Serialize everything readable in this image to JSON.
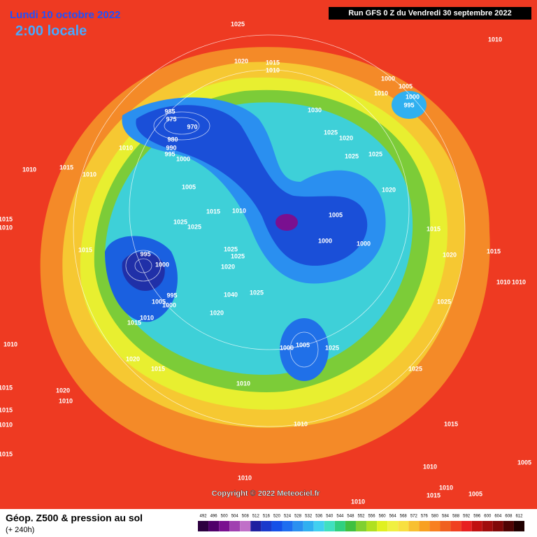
{
  "header": {
    "date": "Lundi 10 octobre 2022",
    "time": "2:00 locale",
    "run": "Run GFS 0 Z du Vendredi 30 septembre 2022"
  },
  "map": {
    "copyright": "Copyright © 2022 Meteociel.fr",
    "isobar_labels": [
      1025,
      1020,
      1015,
      1010,
      1010,
      1000,
      1005,
      1010,
      1000,
      995,
      985,
      975,
      970,
      1030,
      1025,
      1020,
      980,
      990,
      995,
      1000,
      1010,
      1010,
      1015,
      1010,
      1025,
      1025,
      1005,
      1020,
      1015,
      1010,
      1025,
      1025,
      1005,
      1015,
      1015,
      1010,
      1000,
      1000,
      1015,
      995,
      1025,
      1025,
      1020,
      1015,
      1000,
      1020,
      995,
      1040,
      1025,
      1010,
      1010,
      1005,
      1000,
      1020,
      1025,
      1010,
      1015,
      1010,
      1000,
      1005,
      1025,
      1020,
      1015,
      1025,
      1010,
      1015,
      1020,
      1010,
      1015,
      1010,
      1015,
      1010,
      1015,
      1010,
      1010,
      1005,
      1010,
      1005,
      1015,
      1010
    ]
  },
  "footer": {
    "title": "Géop. Z500 & pression au sol",
    "lead": "(+ 240h)"
  },
  "colorbar": {
    "values": [
      492,
      496,
      500,
      504,
      508,
      512,
      516,
      520,
      524,
      528,
      532,
      536,
      540,
      544,
      548,
      552,
      556,
      560,
      564,
      568,
      572,
      576,
      580,
      584,
      588,
      592,
      596,
      600,
      604,
      608,
      612
    ],
    "colors": [
      "#2d0040",
      "#50006a",
      "#7a1090",
      "#a040b0",
      "#c070c8",
      "#2020a0",
      "#1a3acc",
      "#1550e8",
      "#1e6ef0",
      "#2a90f0",
      "#30b0f0",
      "#40d0f0",
      "#40e0c0",
      "#30d080",
      "#40c040",
      "#80d030",
      "#b0e020",
      "#e0f020",
      "#f0f040",
      "#f8e040",
      "#f8c030",
      "#f8a020",
      "#f88020",
      "#f06020",
      "#f04020",
      "#e82020",
      "#c01010",
      "#a00c0c",
      "#800808",
      "#500404",
      "#200000"
    ]
  }
}
